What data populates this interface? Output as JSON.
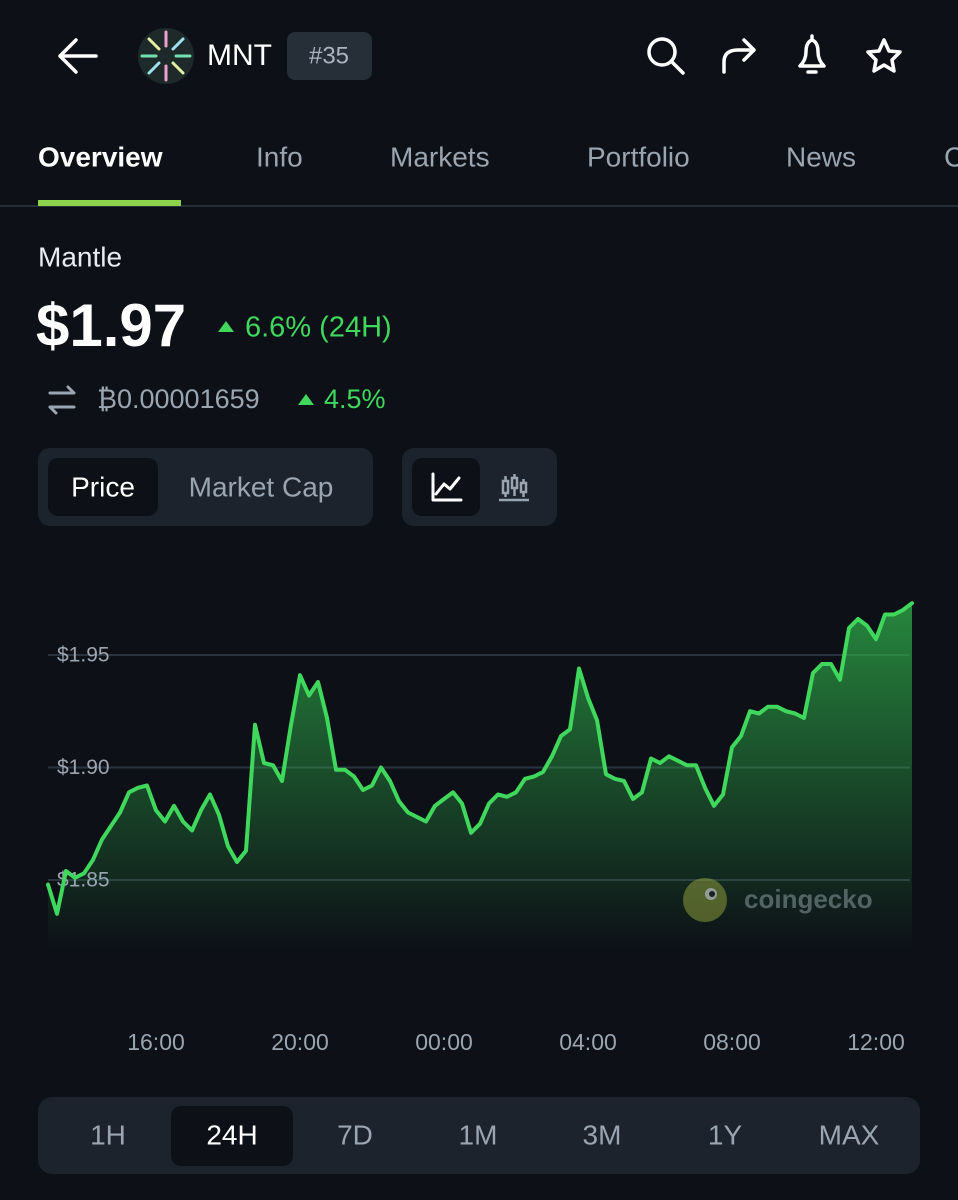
{
  "header": {
    "symbol": "MNT",
    "rank": "#35"
  },
  "tabs": [
    "Overview",
    "Info",
    "Markets",
    "Portfolio",
    "News",
    "C"
  ],
  "coin": {
    "name": "Mantle",
    "price": "$1.97",
    "change_24h": "6.6% (24H)",
    "btc_price": "₿0.00001659",
    "btc_change": "4.5%"
  },
  "chart_toggle": [
    "Price",
    "Market Cap"
  ],
  "watermark": "coingecko",
  "chart_data": {
    "type": "line",
    "color": "#3fd85c",
    "grid": true,
    "x": [
      13,
      13.25,
      13.5,
      13.75,
      14,
      14.25,
      14.5,
      14.75,
      15,
      15.25,
      15.5,
      15.75,
      16,
      16.25,
      16.5,
      16.75,
      17,
      17.25,
      17.5,
      17.75,
      18,
      18.25,
      18.5,
      18.75,
      19,
      19.25,
      19.5,
      19.75,
      20,
      20.25,
      20.5,
      20.75,
      21,
      21.25,
      21.5,
      21.75,
      22,
      22.25,
      22.5,
      22.75,
      23,
      23.25,
      23.5,
      23.75,
      24,
      24.25,
      24.5,
      24.75,
      25,
      25.25,
      25.5,
      25.75,
      26,
      26.25,
      26.5,
      26.75,
      27,
      27.25,
      27.5,
      27.75,
      28,
      28.25,
      28.5,
      28.75,
      29,
      29.25,
      29.5,
      29.75,
      30,
      30.25,
      30.5,
      30.75,
      31,
      31.25,
      31.5,
      31.75,
      32,
      32.25,
      32.5,
      32.75,
      33,
      33.25,
      33.5,
      33.75,
      34,
      34.25,
      34.5,
      34.75,
      35,
      35.25,
      35.5,
      35.75,
      36,
      36.25,
      36.5,
      36.75,
      37
    ],
    "values": [
      1.848,
      1.835,
      1.854,
      1.851,
      1.853,
      1.859,
      1.868,
      1.874,
      1.88,
      1.889,
      1.891,
      1.892,
      1.881,
      1.876,
      1.883,
      1.876,
      1.872,
      1.881,
      1.888,
      1.879,
      1.865,
      1.858,
      1.863,
      1.919,
      1.902,
      1.901,
      1.894,
      1.919,
      1.941,
      1.932,
      1.938,
      1.922,
      1.899,
      1.899,
      1.896,
      1.89,
      1.892,
      1.9,
      1.894,
      1.885,
      1.88,
      1.878,
      1.876,
      1.883,
      1.886,
      1.889,
      1.884,
      1.871,
      1.875,
      1.884,
      1.888,
      1.887,
      1.889,
      1.895,
      1.896,
      1.898,
      1.905,
      1.914,
      1.917,
      1.944,
      1.931,
      1.921,
      1.897,
      1.895,
      1.894,
      1.886,
      1.889,
      1.904,
      1.902,
      1.905,
      1.903,
      1.901,
      1.901,
      1.891,
      1.883,
      1.888,
      1.909,
      1.914,
      1.925,
      1.924,
      1.927,
      1.927,
      1.925,
      1.924,
      1.922,
      1.942,
      1.946,
      1.946,
      1.939,
      1.962,
      1.966,
      1.963,
      1.957,
      1.968,
      1.968,
      1.97,
      1.973
    ],
    "xlim": [
      13,
      37
    ],
    "xticks": [
      {
        "value": 16,
        "label": "16:00"
      },
      {
        "value": 20,
        "label": "20:00"
      },
      {
        "value": 24,
        "label": "00:00"
      },
      {
        "value": 28,
        "label": "04:00"
      },
      {
        "value": 32,
        "label": "08:00"
      },
      {
        "value": 36,
        "label": "12:00"
      }
    ],
    "ylim": [
      1.82,
      1.98
    ],
    "yticks": [
      {
        "value": 1.85,
        "label": "$1.85"
      },
      {
        "value": 1.9,
        "label": "$1.90"
      },
      {
        "value": 1.95,
        "label": "$1.95"
      }
    ]
  },
  "time_ranges": [
    "1H",
    "24H",
    "7D",
    "1M",
    "3M",
    "1Y",
    "MAX"
  ]
}
